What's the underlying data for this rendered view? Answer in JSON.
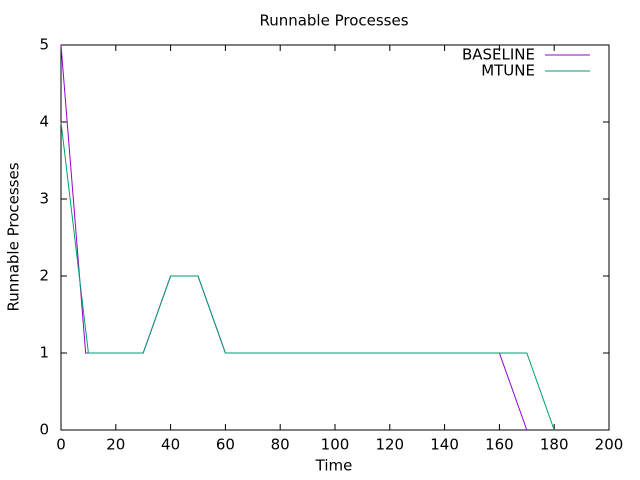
{
  "chart_data": {
    "type": "line",
    "title": "Runnable Processes",
    "x_label": "Time",
    "y_label": "Runnable Processes",
    "series": [
      {
        "name": "BASELINE",
        "color": "#9400d3",
        "x": [
          0,
          9,
          30,
          40,
          50,
          60,
          160,
          170
        ],
        "values": [
          5,
          1,
          1,
          2,
          2,
          1,
          1,
          0
        ]
      },
      {
        "name": "MTUNE",
        "color": "#009e73",
        "x": [
          0,
          10,
          30,
          40,
          50,
          60,
          170,
          180
        ],
        "values": [
          4,
          1,
          1,
          2,
          2,
          1,
          1,
          0
        ]
      }
    ],
    "xlim": [
      0,
      200
    ],
    "ylim": [
      0,
      5
    ],
    "xticks": [
      0,
      20,
      40,
      60,
      80,
      100,
      120,
      140,
      160,
      180,
      200
    ],
    "yticks": [
      0,
      1,
      2,
      3,
      4,
      5
    ],
    "legend": "top-right"
  }
}
